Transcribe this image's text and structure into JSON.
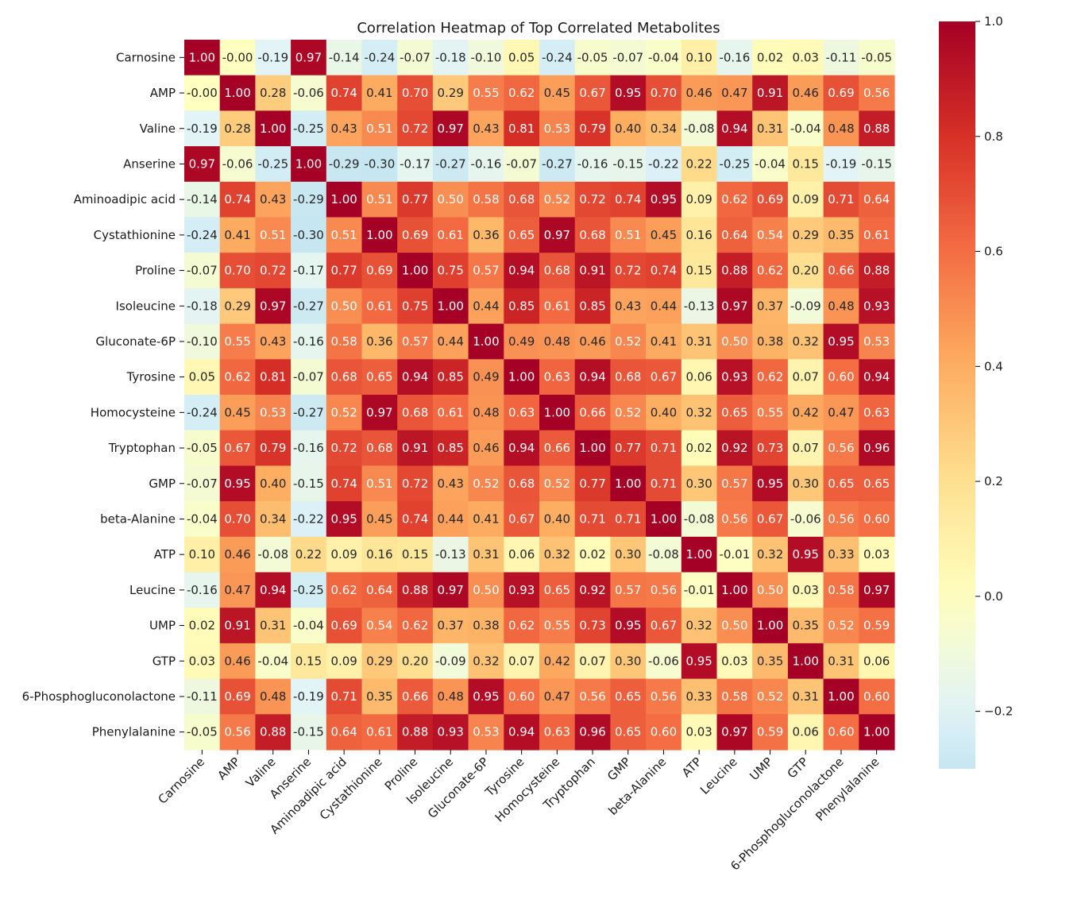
{
  "chart_data": {
    "type": "heatmap",
    "title": "Correlation Heatmap of Top Correlated Metabolites",
    "xlabel": "",
    "ylabel": "",
    "labels": [
      "Carnosine",
      "AMP",
      "Valine",
      "Anserine",
      "Aminoadipic acid",
      "Cystathionine",
      "Proline",
      "Isoleucine",
      "Gluconate-6P",
      "Tyrosine",
      "Homocysteine",
      "Tryptophan",
      "GMP",
      "beta-Alanine",
      "ATP",
      "Leucine",
      "UMP",
      "GTP",
      "6-Phosphogluconolactone",
      "Phenylalanine"
    ],
    "matrix": [
      [
        1.0,
        -0.0,
        -0.19,
        0.97,
        -0.14,
        -0.24,
        -0.07,
        -0.18,
        -0.1,
        0.05,
        -0.24,
        -0.05,
        -0.07,
        -0.04,
        0.1,
        -0.16,
        0.02,
        0.03,
        -0.11,
        -0.05
      ],
      [
        -0.0,
        1.0,
        0.28,
        -0.06,
        0.74,
        0.41,
        0.7,
        0.29,
        0.55,
        0.62,
        0.45,
        0.67,
        0.95,
        0.7,
        0.46,
        0.47,
        0.91,
        0.46,
        0.69,
        0.56
      ],
      [
        -0.19,
        0.28,
        1.0,
        -0.25,
        0.43,
        0.51,
        0.72,
        0.97,
        0.43,
        0.81,
        0.53,
        0.79,
        0.4,
        0.34,
        -0.08,
        0.94,
        0.31,
        -0.04,
        0.48,
        0.88
      ],
      [
        0.97,
        -0.06,
        -0.25,
        1.0,
        -0.29,
        -0.3,
        -0.17,
        -0.27,
        -0.16,
        -0.07,
        -0.27,
        -0.16,
        -0.15,
        -0.22,
        0.22,
        -0.25,
        -0.04,
        0.15,
        -0.19,
        -0.15
      ],
      [
        -0.14,
        0.74,
        0.43,
        -0.29,
        1.0,
        0.51,
        0.77,
        0.5,
        0.58,
        0.68,
        0.52,
        0.72,
        0.74,
        0.95,
        0.09,
        0.62,
        0.69,
        0.09,
        0.71,
        0.64
      ],
      [
        -0.24,
        0.41,
        0.51,
        -0.3,
        0.51,
        1.0,
        0.69,
        0.61,
        0.36,
        0.65,
        0.97,
        0.68,
        0.51,
        0.45,
        0.16,
        0.64,
        0.54,
        0.29,
        0.35,
        0.61
      ],
      [
        -0.07,
        0.7,
        0.72,
        -0.17,
        0.77,
        0.69,
        1.0,
        0.75,
        0.57,
        0.94,
        0.68,
        0.91,
        0.72,
        0.74,
        0.15,
        0.88,
        0.62,
        0.2,
        0.66,
        0.88
      ],
      [
        -0.18,
        0.29,
        0.97,
        -0.27,
        0.5,
        0.61,
        0.75,
        1.0,
        0.44,
        0.85,
        0.61,
        0.85,
        0.43,
        0.44,
        -0.13,
        0.97,
        0.37,
        -0.09,
        0.48,
        0.93
      ],
      [
        -0.1,
        0.55,
        0.43,
        -0.16,
        0.58,
        0.36,
        0.57,
        0.44,
        1.0,
        0.49,
        0.48,
        0.46,
        0.52,
        0.41,
        0.31,
        0.5,
        0.38,
        0.32,
        0.95,
        0.53
      ],
      [
        0.05,
        0.62,
        0.81,
        -0.07,
        0.68,
        0.65,
        0.94,
        0.85,
        0.49,
        1.0,
        0.63,
        0.94,
        0.68,
        0.67,
        0.06,
        0.93,
        0.62,
        0.07,
        0.6,
        0.94
      ],
      [
        -0.24,
        0.45,
        0.53,
        -0.27,
        0.52,
        0.97,
        0.68,
        0.61,
        0.48,
        0.63,
        1.0,
        0.66,
        0.52,
        0.4,
        0.32,
        0.65,
        0.55,
        0.42,
        0.47,
        0.63
      ],
      [
        -0.05,
        0.67,
        0.79,
        -0.16,
        0.72,
        0.68,
        0.91,
        0.85,
        0.46,
        0.94,
        0.66,
        1.0,
        0.77,
        0.71,
        0.02,
        0.92,
        0.73,
        0.07,
        0.56,
        0.96
      ],
      [
        -0.07,
        0.95,
        0.4,
        -0.15,
        0.74,
        0.51,
        0.72,
        0.43,
        0.52,
        0.68,
        0.52,
        0.77,
        1.0,
        0.71,
        0.3,
        0.57,
        0.95,
        0.3,
        0.65,
        0.65
      ],
      [
        -0.04,
        0.7,
        0.34,
        -0.22,
        0.95,
        0.45,
        0.74,
        0.44,
        0.41,
        0.67,
        0.4,
        0.71,
        0.71,
        1.0,
        -0.08,
        0.56,
        0.67,
        -0.06,
        0.56,
        0.6
      ],
      [
        0.1,
        0.46,
        -0.08,
        0.22,
        0.09,
        0.16,
        0.15,
        -0.13,
        0.31,
        0.06,
        0.32,
        0.02,
        0.3,
        -0.08,
        1.0,
        -0.01,
        0.32,
        0.95,
        0.33,
        0.03
      ],
      [
        -0.16,
        0.47,
        0.94,
        -0.25,
        0.62,
        0.64,
        0.88,
        0.97,
        0.5,
        0.93,
        0.65,
        0.92,
        0.57,
        0.56,
        -0.01,
        1.0,
        0.5,
        0.03,
        0.58,
        0.97
      ],
      [
        0.02,
        0.91,
        0.31,
        -0.04,
        0.69,
        0.54,
        0.62,
        0.37,
        0.38,
        0.62,
        0.55,
        0.73,
        0.95,
        0.67,
        0.32,
        0.5,
        1.0,
        0.35,
        0.52,
        0.59
      ],
      [
        0.03,
        0.46,
        -0.04,
        0.15,
        0.09,
        0.29,
        0.2,
        -0.09,
        0.32,
        0.07,
        0.42,
        0.07,
        0.3,
        -0.06,
        0.95,
        0.03,
        0.35,
        1.0,
        0.31,
        0.06
      ],
      [
        -0.11,
        0.69,
        0.48,
        -0.19,
        0.71,
        0.35,
        0.66,
        0.48,
        0.95,
        0.6,
        0.47,
        0.56,
        0.65,
        0.56,
        0.33,
        0.58,
        0.52,
        0.31,
        1.0,
        0.6
      ],
      [
        -0.05,
        0.56,
        0.88,
        -0.15,
        0.64,
        0.61,
        0.88,
        0.93,
        0.53,
        0.94,
        0.63,
        0.96,
        0.65,
        0.6,
        0.03,
        0.97,
        0.59,
        0.06,
        0.6,
        1.0
      ]
    ],
    "vmin": -0.3,
    "vmax": 1.0,
    "colormap": "RdYlBu_r (centered at 0)",
    "colorbar_ticks": [
      1.0,
      0.8,
      0.6,
      0.4,
      0.2,
      0.0,
      -0.2
    ],
    "colorbar_tick_labels": [
      "1.0",
      "0.8",
      "0.6",
      "0.4",
      "0.2",
      "0.0",
      "−0.2"
    ],
    "annotation_format": "0.00",
    "grid": false,
    "legend": "colorbar-right"
  }
}
